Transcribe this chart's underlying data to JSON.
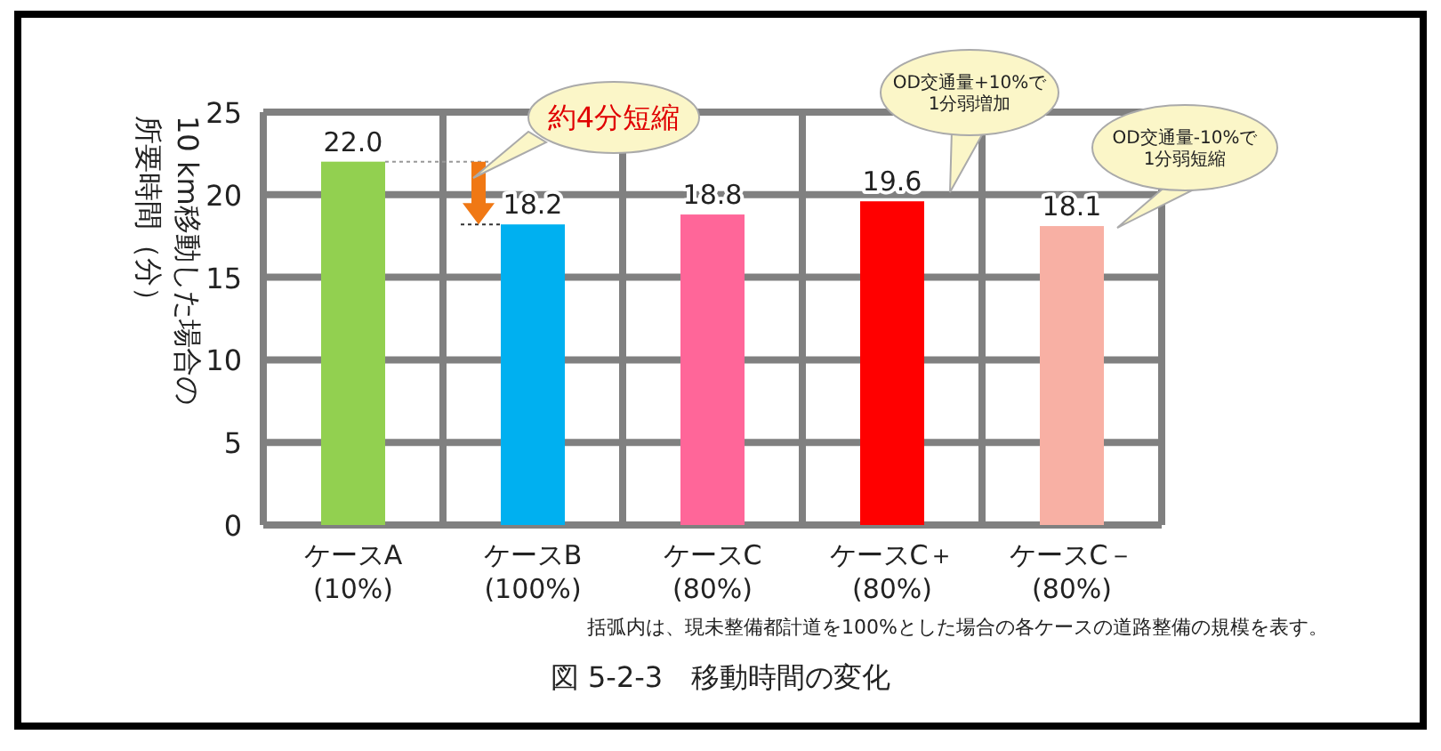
{
  "chart_data": {
    "type": "bar",
    "title": "図 5-2-3　移動時間の変化",
    "ylabel": "10 km移動した場合の所要時間（分）",
    "categories": [
      "ケースA\n(10%)",
      "ケースB\n(100%)",
      "ケースC\n(80%)",
      "ケースC＋\n(80%)",
      "ケースC－\n(80%)"
    ],
    "values": [
      22.0,
      18.2,
      18.8,
      19.6,
      18.1
    ],
    "colors": [
      "#92d050",
      "#00b0f0",
      "#ff6699",
      "#ff0000",
      "#f8b0a4"
    ],
    "value_labels": [
      "22.0",
      "18.2",
      "18.8",
      "19.6",
      "18.1"
    ],
    "ylim": [
      0,
      25
    ],
    "yticks": [
      0,
      5,
      10,
      15,
      20,
      25
    ],
    "grid": true,
    "annotations": [
      "約4分短縮",
      "OD交通量+10%で\n1分弱増加",
      "OD交通量-10%で\n1分弱短縮",
      "括弧内は、現未整備都計道を100%とした場合の各ケースの道路整備の規模を表す。"
    ]
  }
}
